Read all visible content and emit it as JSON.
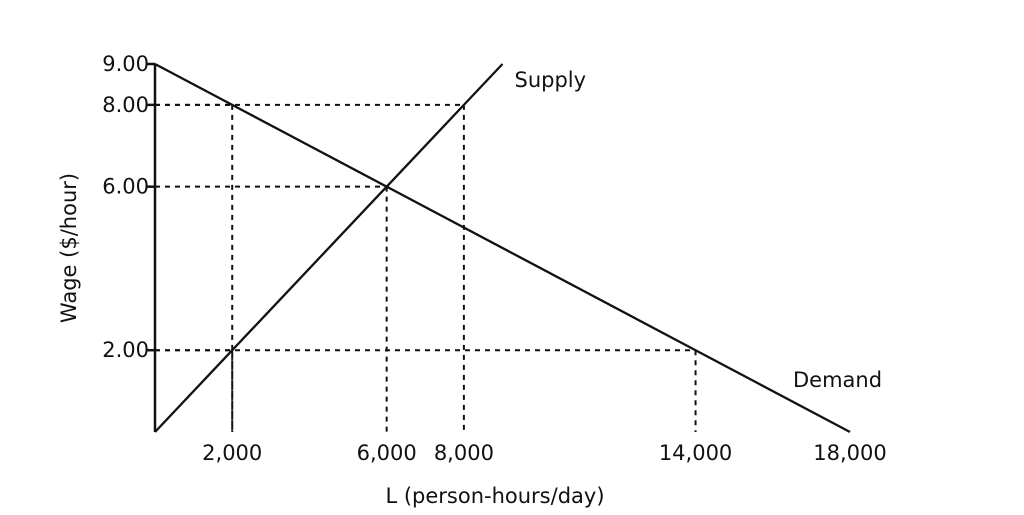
{
  "chart_data": {
    "type": "line",
    "title": "",
    "xlabel": "L (person-hours/day)",
    "ylabel": "Wage ($/hour)",
    "xlim": [
      0,
      18000
    ],
    "ylim": [
      0,
      9
    ],
    "x_ticks": [
      {
        "value": 2000,
        "label": "2,000"
      },
      {
        "value": 6000,
        "label": "6,000"
      },
      {
        "value": 8000,
        "label": "8,000"
      },
      {
        "value": 14000,
        "label": "14,000"
      },
      {
        "value": 18000,
        "label": "18,000"
      }
    ],
    "y_ticks": [
      {
        "value": 2,
        "label": "2.00"
      },
      {
        "value": 6,
        "label": "6.00"
      },
      {
        "value": 8,
        "label": "8.00"
      },
      {
        "value": 9,
        "label": "9.00"
      }
    ],
    "series": [
      {
        "name": "Supply",
        "x": [
          0,
          2000,
          6000,
          8000,
          9000
        ],
        "y": [
          0,
          2,
          6,
          8,
          9
        ]
      },
      {
        "name": "Demand",
        "x": [
          0,
          2000,
          6000,
          14000,
          18000
        ],
        "y": [
          9,
          8,
          6,
          2,
          0
        ]
      }
    ],
    "reference_lines": [
      {
        "x": 2000,
        "y": 8
      },
      {
        "x": 8000,
        "y": 8
      },
      {
        "x": 6000,
        "y": 6
      },
      {
        "x": 2000,
        "y": 2
      },
      {
        "x": 14000,
        "y": 2
      }
    ],
    "grid": false,
    "legend": "none"
  }
}
